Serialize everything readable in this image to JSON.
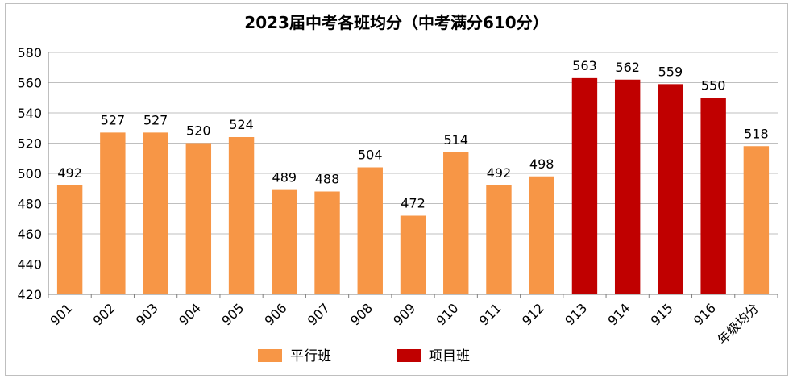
{
  "chart_data": {
    "type": "bar",
    "title": "2023届中考各班均分（中考满分610分）",
    "categories": [
      "901",
      "902",
      "903",
      "904",
      "905",
      "906",
      "907",
      "908",
      "909",
      "910",
      "911",
      "912",
      "913",
      "914",
      "915",
      "916",
      "年级均分"
    ],
    "values": [
      492,
      527,
      527,
      520,
      524,
      489,
      488,
      504,
      472,
      514,
      492,
      498,
      563,
      562,
      559,
      550,
      518
    ],
    "groups": [
      "平行班",
      "平行班",
      "平行班",
      "平行班",
      "平行班",
      "平行班",
      "平行班",
      "平行班",
      "平行班",
      "平行班",
      "平行班",
      "平行班",
      "项目班",
      "项目班",
      "项目班",
      "项目班",
      "平行班"
    ],
    "ylim": [
      420,
      580
    ],
    "yticks": [
      420,
      440,
      460,
      480,
      500,
      520,
      540,
      560,
      580
    ],
    "grid": true,
    "legend": [
      {
        "name": "平行班",
        "color": "#f79646"
      },
      {
        "name": "项目班",
        "color": "#c00000"
      }
    ],
    "legend_position": "bottom"
  }
}
